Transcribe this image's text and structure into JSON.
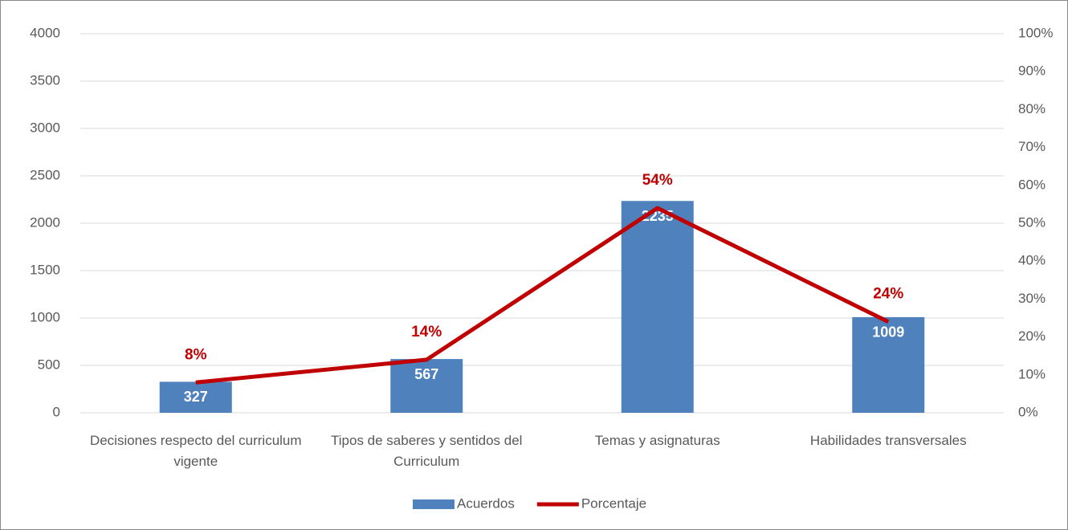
{
  "chart_data": {
    "type": "bar",
    "categories": [
      "Decisiones respecto del curriculum vigente",
      "Tipos de saberes y sentidos del Curriculum",
      "Temas y asignaturas",
      "Habilidades transversales"
    ],
    "series": [
      {
        "name": "Acuerdos",
        "type": "bar",
        "color": "#4f81bd",
        "values": [
          327,
          567,
          2235,
          1009
        ]
      },
      {
        "name": "Porcentaje",
        "type": "line",
        "axis": "y2",
        "color": "#c00000",
        "values": [
          8,
          14,
          54,
          24
        ],
        "value_labels": [
          "8%",
          "14%",
          "54%",
          "24%"
        ]
      }
    ],
    "ylim": [
      0,
      4000
    ],
    "yticks": [
      0,
      500,
      1000,
      1500,
      2000,
      2500,
      3000,
      3500,
      4000
    ],
    "y2lim": [
      0,
      100
    ],
    "y2ticks": [
      {
        "value": 0,
        "label": "0%"
      },
      {
        "value": 10,
        "label": "10%"
      },
      {
        "value": 20,
        "label": "20%"
      },
      {
        "value": 30,
        "label": "30%"
      },
      {
        "value": 40,
        "label": "40%"
      },
      {
        "value": 50,
        "label": "50%"
      },
      {
        "value": 60,
        "label": "60%"
      },
      {
        "value": 70,
        "label": "70%"
      },
      {
        "value": 80,
        "label": "80%"
      },
      {
        "value": 90,
        "label": "90%"
      },
      {
        "value": 100,
        "label": "100%"
      }
    ],
    "grid": true,
    "legend": "bottom"
  }
}
